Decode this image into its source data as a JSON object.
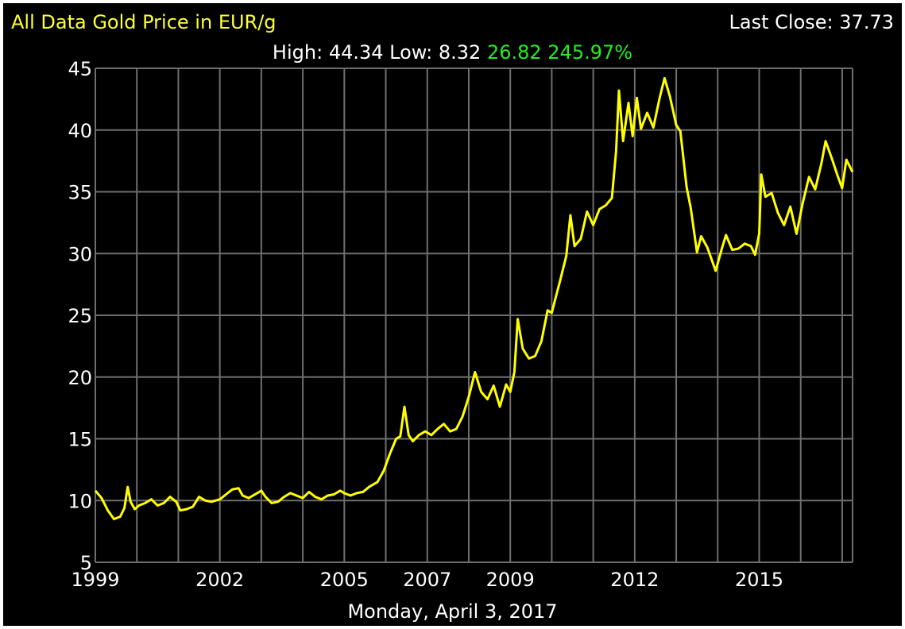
{
  "header": {
    "title": "All Data Gold Price in EUR/g",
    "last_close_label": "Last Close:",
    "last_close_value": "37.73",
    "high_label": "High:",
    "high_value": "44.34",
    "low_label": "Low:",
    "low_value": "8.32",
    "change": "26.82",
    "change_pct": "245.97%"
  },
  "footer": {
    "date": "Monday, April 3, 2017"
  },
  "colors": {
    "background": "#000000",
    "grid": "#6e6e6e",
    "line": "#ffff00",
    "title": "#ffff33",
    "positive": "#22ee22",
    "text": "#ffffff"
  },
  "chart_data": {
    "type": "line",
    "title": "All Data Gold Price in EUR/g",
    "xlabel": "Monday, April 3, 2017",
    "ylabel": "",
    "ylim": [
      5,
      45
    ],
    "xlim": [
      1999.0,
      2017.25
    ],
    "y_ticks": [
      5,
      10,
      15,
      20,
      25,
      30,
      35,
      40,
      45
    ],
    "x_ticks": [
      1999,
      2002,
      2005,
      2007,
      2009,
      2012,
      2015
    ],
    "x_gridlines": [
      1999,
      2000,
      2001,
      2002,
      2003,
      2004,
      2005,
      2006,
      2007,
      2008,
      2009,
      2010,
      2011,
      2012,
      2013,
      2014,
      2015,
      2016,
      2017
    ],
    "grid": true,
    "series": [
      {
        "color": "#ffff00",
        "points": [
          [
            1999.0,
            10.8
          ],
          [
            1999.15,
            10.2
          ],
          [
            1999.3,
            9.2
          ],
          [
            1999.45,
            8.5
          ],
          [
            1999.6,
            8.7
          ],
          [
            1999.7,
            9.4
          ],
          [
            1999.78,
            11.1
          ],
          [
            1999.85,
            9.9
          ],
          [
            1999.95,
            9.3
          ],
          [
            2000.05,
            9.6
          ],
          [
            2000.2,
            9.8
          ],
          [
            2000.35,
            10.1
          ],
          [
            2000.5,
            9.6
          ],
          [
            2000.65,
            9.8
          ],
          [
            2000.8,
            10.3
          ],
          [
            2000.95,
            9.9
          ],
          [
            2001.05,
            9.2
          ],
          [
            2001.2,
            9.3
          ],
          [
            2001.35,
            9.5
          ],
          [
            2001.5,
            10.3
          ],
          [
            2001.65,
            10.0
          ],
          [
            2001.8,
            9.9
          ],
          [
            2002.0,
            10.1
          ],
          [
            2002.15,
            10.5
          ],
          [
            2002.3,
            10.9
          ],
          [
            2002.45,
            11.0
          ],
          [
            2002.55,
            10.4
          ],
          [
            2002.7,
            10.2
          ],
          [
            2002.85,
            10.5
          ],
          [
            2003.0,
            10.8
          ],
          [
            2003.1,
            10.3
          ],
          [
            2003.25,
            9.8
          ],
          [
            2003.4,
            9.9
          ],
          [
            2003.55,
            10.3
          ],
          [
            2003.7,
            10.6
          ],
          [
            2003.85,
            10.4
          ],
          [
            2004.0,
            10.2
          ],
          [
            2004.15,
            10.7
          ],
          [
            2004.3,
            10.3
          ],
          [
            2004.45,
            10.1
          ],
          [
            2004.6,
            10.4
          ],
          [
            2004.75,
            10.5
          ],
          [
            2004.9,
            10.8
          ],
          [
            2005.0,
            10.6
          ],
          [
            2005.15,
            10.4
          ],
          [
            2005.3,
            10.6
          ],
          [
            2005.45,
            10.7
          ],
          [
            2005.6,
            11.1
          ],
          [
            2005.8,
            11.5
          ],
          [
            2005.95,
            12.4
          ],
          [
            2006.1,
            13.8
          ],
          [
            2006.25,
            15.0
          ],
          [
            2006.35,
            15.2
          ],
          [
            2006.45,
            17.6
          ],
          [
            2006.55,
            15.3
          ],
          [
            2006.65,
            14.8
          ],
          [
            2006.8,
            15.3
          ],
          [
            2006.95,
            15.6
          ],
          [
            2007.1,
            15.3
          ],
          [
            2007.25,
            15.8
          ],
          [
            2007.4,
            16.2
          ],
          [
            2007.55,
            15.6
          ],
          [
            2007.7,
            15.8
          ],
          [
            2007.85,
            16.8
          ],
          [
            2008.0,
            18.4
          ],
          [
            2008.15,
            20.4
          ],
          [
            2008.3,
            18.8
          ],
          [
            2008.45,
            18.2
          ],
          [
            2008.6,
            19.3
          ],
          [
            2008.75,
            17.6
          ],
          [
            2008.9,
            19.4
          ],
          [
            2009.0,
            18.8
          ],
          [
            2009.1,
            20.4
          ],
          [
            2009.18,
            24.7
          ],
          [
            2009.3,
            22.3
          ],
          [
            2009.45,
            21.5
          ],
          [
            2009.6,
            21.7
          ],
          [
            2009.75,
            22.9
          ],
          [
            2009.9,
            25.4
          ],
          [
            2010.0,
            25.2
          ],
          [
            2010.1,
            26.5
          ],
          [
            2010.2,
            27.8
          ],
          [
            2010.35,
            29.8
          ],
          [
            2010.45,
            33.1
          ],
          [
            2010.55,
            30.6
          ],
          [
            2010.7,
            31.2
          ],
          [
            2010.85,
            33.4
          ],
          [
            2011.0,
            32.3
          ],
          [
            2011.15,
            33.6
          ],
          [
            2011.3,
            33.9
          ],
          [
            2011.45,
            34.5
          ],
          [
            2011.55,
            38.3
          ],
          [
            2011.62,
            43.2
          ],
          [
            2011.72,
            39.1
          ],
          [
            2011.85,
            42.2
          ],
          [
            2011.95,
            39.5
          ],
          [
            2012.05,
            42.6
          ],
          [
            2012.15,
            40.1
          ],
          [
            2012.3,
            41.4
          ],
          [
            2012.45,
            40.2
          ],
          [
            2012.6,
            42.6
          ],
          [
            2012.72,
            44.2
          ],
          [
            2012.85,
            42.7
          ],
          [
            2013.0,
            40.4
          ],
          [
            2013.1,
            39.9
          ],
          [
            2013.25,
            35.4
          ],
          [
            2013.35,
            33.7
          ],
          [
            2013.5,
            30.1
          ],
          [
            2013.6,
            31.4
          ],
          [
            2013.75,
            30.5
          ],
          [
            2013.95,
            28.6
          ],
          [
            2014.1,
            30.4
          ],
          [
            2014.2,
            31.5
          ],
          [
            2014.35,
            30.3
          ],
          [
            2014.5,
            30.4
          ],
          [
            2014.65,
            30.8
          ],
          [
            2014.8,
            30.6
          ],
          [
            2014.9,
            29.9
          ],
          [
            2015.0,
            31.6
          ],
          [
            2015.05,
            36.4
          ],
          [
            2015.15,
            34.6
          ],
          [
            2015.3,
            34.9
          ],
          [
            2015.45,
            33.3
          ],
          [
            2015.6,
            32.3
          ],
          [
            2015.75,
            33.8
          ],
          [
            2015.9,
            31.6
          ],
          [
            2016.05,
            34.1
          ],
          [
            2016.2,
            36.2
          ],
          [
            2016.35,
            35.2
          ],
          [
            2016.5,
            37.3
          ],
          [
            2016.6,
            39.1
          ],
          [
            2016.75,
            37.7
          ],
          [
            2016.9,
            36.2
          ],
          [
            2017.0,
            35.3
          ],
          [
            2017.1,
            37.6
          ],
          [
            2017.25,
            36.6
          ]
        ]
      }
    ]
  }
}
